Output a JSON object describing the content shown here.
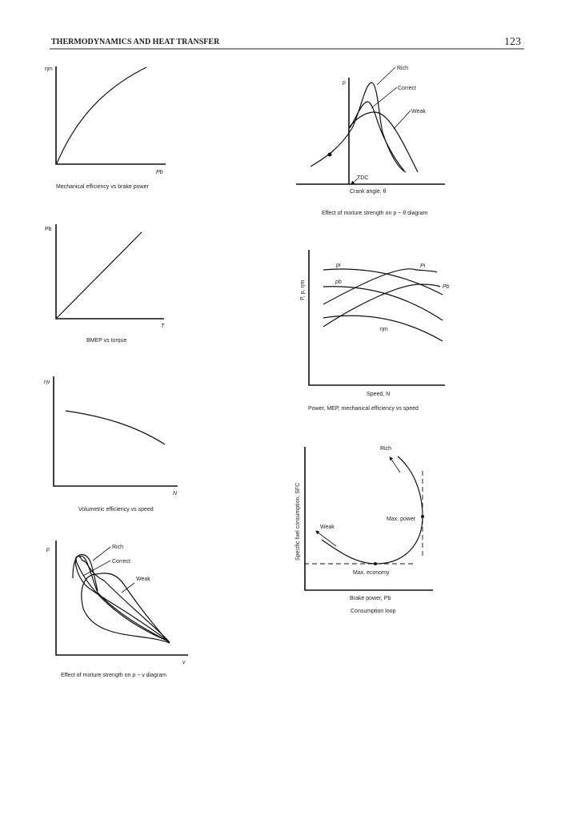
{
  "header": {
    "title": "THERMODYNAMICS AND HEAT TRANSFER",
    "page_number": "123"
  },
  "fig_mech_eff": {
    "ylabel": "ηm",
    "xlabel": "Pb",
    "caption": "Mechanical efficiency vs brake power"
  },
  "fig_bmep": {
    "ylabel": "Pb",
    "xlabel": "T",
    "caption": "BMEP vs torque"
  },
  "fig_vol_eff": {
    "ylabel": "ηv",
    "xlabel": "N",
    "caption": "Volumetric efficiency vs speed"
  },
  "fig_pv": {
    "ylabel": "p",
    "xlabel": "v",
    "labels": [
      "Rich",
      "Correct",
      "Weak"
    ],
    "caption": "Effect of mixture strength on p − v diagram"
  },
  "fig_ptheta": {
    "ylabel": "p",
    "xlabel": "Crank angle, θ",
    "tdc": "TDC",
    "labels": [
      "Rich",
      "Correct",
      "Weak"
    ],
    "caption": "Effect of mixture strength on p − θ diagram"
  },
  "fig_speed": {
    "ylabel": "P, p, ηm",
    "xlabel": "Speed, N",
    "curve_labels": {
      "pi": "pi",
      "Pi": "Pi",
      "pb": "pb",
      "Pb": "Pb",
      "etam": "ηm"
    },
    "caption": "Power, MEP, mechanical efficiency vs speed"
  },
  "fig_loop": {
    "ylabel": "Specific fuel consumption, SFC",
    "xlabel": "Brake power, Pb",
    "rich": "Rich",
    "weak": "Weak",
    "max_power": "Max. power",
    "max_economy": "Max. economy",
    "caption": "Consumption loop"
  }
}
